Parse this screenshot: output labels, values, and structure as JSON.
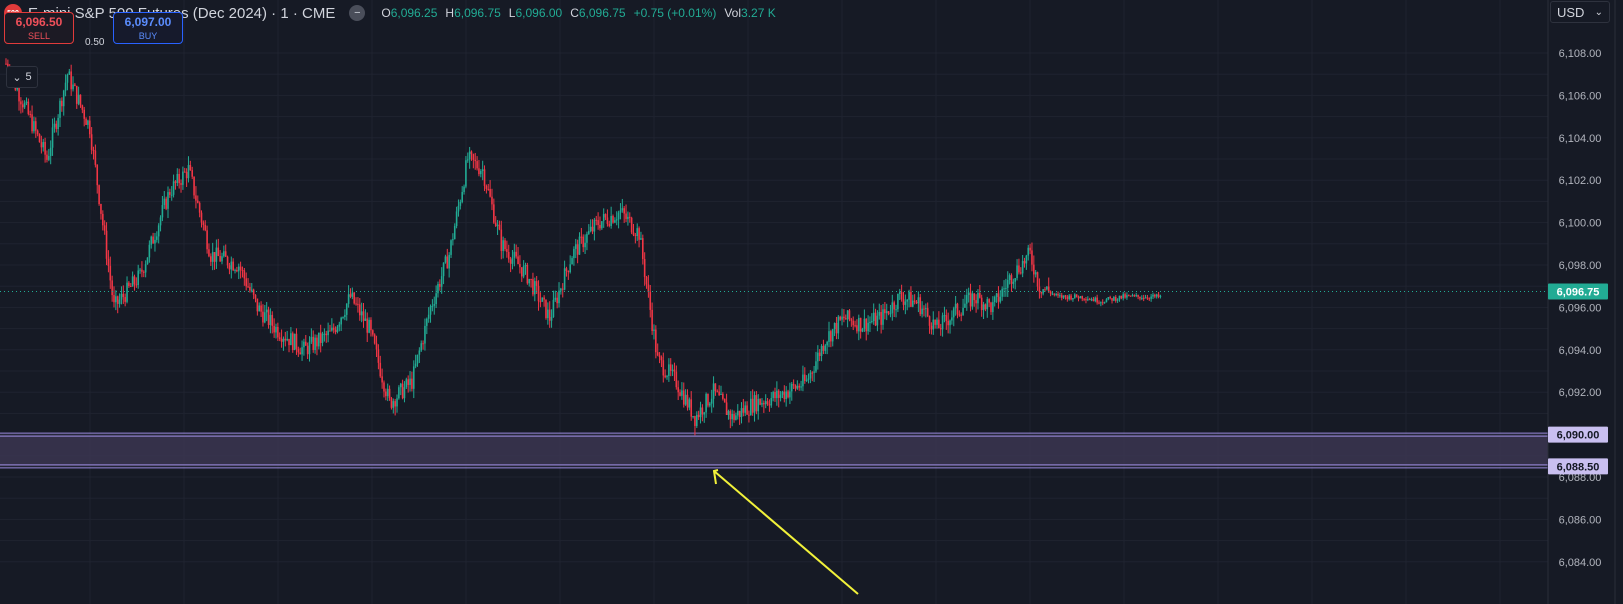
{
  "header": {
    "logo_text": "500",
    "symbol": "E-mini S&P 500 Futures (Dec 2024) · 1 · CME",
    "ohlc": [
      {
        "key": "O",
        "value": "6,096.25"
      },
      {
        "key": "H",
        "value": "6,096.75"
      },
      {
        "key": "L",
        "value": "6,096.00"
      },
      {
        "key": "C",
        "value": "6,096.75"
      },
      {
        "key": "",
        "value": "+0.75 (+0.01%)"
      },
      {
        "key": "Vol",
        "value": "3.27 K"
      }
    ]
  },
  "trade": {
    "sell_price": "6,096.50",
    "sell_label": "SELL",
    "spread": "0.50",
    "buy_price": "6,097.00",
    "buy_label": "BUY"
  },
  "collapse_count": "5",
  "currency": "USD",
  "colors": {
    "up": "#22ab94",
    "down": "#f23645",
    "background": "#161a25",
    "zone": "#9c8ce0",
    "arrow": "#f1f13a",
    "last_price": "#22ab94"
  },
  "chart_data": {
    "type": "candlestick",
    "ylim": [
      6083.5,
      6109.5
    ],
    "yticks": [
      "6,108.00",
      "6,106.00",
      "6,104.00",
      "6,102.00",
      "6,100.00",
      "6,098.00",
      "6,096.00",
      "6,094.00",
      "6,092.00",
      "6,090.00",
      "6,088.00",
      "6,086.00",
      "6,084.00"
    ],
    "last_price": {
      "value": 6096.75,
      "label": "6,096.75"
    },
    "support_zone": {
      "top": 6090.0,
      "bottom": 6088.5,
      "top_label": "6,090.00",
      "bottom_label": "6,088.50"
    },
    "close_path": [
      [
        0,
        6107.5
      ],
      [
        10,
        6105.5
      ],
      [
        22,
        6103
      ],
      [
        33,
        6107
      ],
      [
        45,
        6104.5
      ],
      [
        58,
        6096
      ],
      [
        72,
        6097.5
      ],
      [
        88,
        6101.5
      ],
      [
        98,
        6102.5
      ],
      [
        110,
        6098.5
      ],
      [
        125,
        6098
      ],
      [
        135,
        6096
      ],
      [
        145,
        6095
      ],
      [
        160,
        6094
      ],
      [
        175,
        6094.8
      ],
      [
        185,
        6096.5
      ],
      [
        195,
        6095
      ],
      [
        206,
        6091.5
      ],
      [
        218,
        6092.5
      ],
      [
        228,
        6096
      ],
      [
        238,
        6098.5
      ],
      [
        248,
        6103
      ],
      [
        256,
        6102.5
      ],
      [
        266,
        6099
      ],
      [
        280,
        6097.5
      ],
      [
        292,
        6095.5
      ],
      [
        304,
        6098.5
      ],
      [
        318,
        6100
      ],
      [
        330,
        6100.5
      ],
      [
        340,
        6099.5
      ],
      [
        350,
        6093.5
      ],
      [
        360,
        6092.5
      ],
      [
        370,
        6090.8
      ],
      [
        380,
        6092
      ],
      [
        390,
        6090.8
      ],
      [
        402,
        6091.5
      ],
      [
        414,
        6091.8
      ],
      [
        430,
        6092.5
      ],
      [
        440,
        6094.5
      ],
      [
        450,
        6095.5
      ],
      [
        460,
        6095.2
      ],
      [
        470,
        6095.5
      ],
      [
        480,
        6096.5
      ],
      [
        490,
        6096.2
      ],
      [
        500,
        6095
      ],
      [
        510,
        6095.8
      ],
      [
        520,
        6096.5
      ],
      [
        530,
        6096
      ],
      [
        540,
        6097.5
      ],
      [
        550,
        6098.5
      ],
      [
        555,
        6097
      ],
      [
        565,
        6096.5
      ],
      [
        578,
        6096.5
      ],
      [
        588,
        6096.3
      ],
      [
        600,
        6096.5
      ],
      [
        610,
        6096.5
      ],
      [
        620,
        6096.5
      ]
    ]
  }
}
